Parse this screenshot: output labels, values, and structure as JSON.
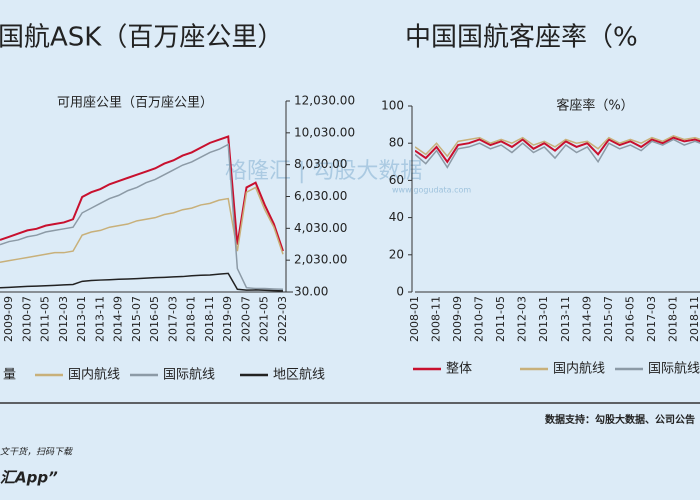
{
  "header": {
    "left_title": "国航ASK（百万座公里）",
    "right_title": "中国国航客座率（%"
  },
  "watermark": {
    "brand": "格隆汇 | 勾股大数据",
    "url": "www.gogudata.com"
  },
  "footer": {
    "source": "数据支持：勾股大数据、公司公告",
    "promo": "文干货，扫码下载",
    "app": "汇App”"
  },
  "chart_data": [
    {
      "type": "line",
      "title": "可用座公里（百万座公里）",
      "y_axis_side": "right",
      "categories": [
        null,
        "2009-09",
        null,
        "2010-07",
        null,
        "2011-05",
        null,
        "2012-03",
        null,
        "2013-01",
        null,
        "2013-11",
        null,
        "2014-09",
        null,
        "2015-07",
        null,
        "2016-05",
        null,
        "2017-03",
        null,
        "2018-01",
        null,
        "2018-11",
        null,
        "2019-09",
        null,
        "2020-07",
        null,
        "2021-05",
        null,
        "2022-03"
      ],
      "ylim": [
        30,
        12030
      ],
      "yticks": [
        {
          "value": 30,
          "label": "30.00"
        },
        {
          "value": 2030,
          "label": "2,030.00"
        },
        {
          "value": 4030,
          "label": "4,030.00"
        },
        {
          "value": 6030,
          "label": "6,030.00"
        },
        {
          "value": 8030,
          "label": "8,030.00"
        },
        {
          "value": 10030,
          "label": "10,030.00"
        },
        {
          "value": 12030,
          "label": "12,030.00"
        }
      ],
      "series": [
        {
          "name": "量",
          "color": "#c8102e",
          "values": [
            3300,
            3500,
            3700,
            3900,
            4000,
            4200,
            4300,
            4400,
            4600,
            6000,
            6300,
            6500,
            6800,
            7000,
            7200,
            7400,
            7600,
            7800,
            8100,
            8300,
            8600,
            8800,
            9100,
            9400,
            9600,
            9800,
            3000,
            6600,
            6900,
            5500,
            4300,
            2600
          ]
        },
        {
          "name": "国内航线",
          "color": "#c8b07a",
          "values": [
            1900,
            2000,
            2100,
            2200,
            2300,
            2400,
            2500,
            2500,
            2600,
            3600,
            3800,
            3900,
            4100,
            4200,
            4300,
            4500,
            4600,
            4700,
            4900,
            5000,
            5200,
            5300,
            5500,
            5600,
            5800,
            5900,
            2600,
            6300,
            6600,
            5200,
            4100,
            2400
          ]
        },
        {
          "name": "国际航线",
          "color": "#8c9aa6",
          "values": [
            3000,
            3200,
            3300,
            3500,
            3600,
            3800,
            3900,
            4000,
            4100,
            5000,
            5300,
            5600,
            5900,
            6100,
            6400,
            6600,
            6900,
            7100,
            7400,
            7700,
            8000,
            8200,
            8500,
            8800,
            9000,
            9300,
            1500,
            300,
            250,
            250,
            220,
            200
          ]
        },
        {
          "name": "地区航线",
          "color": "#222222",
          "values": [
            300,
            320,
            350,
            380,
            400,
            420,
            450,
            480,
            500,
            700,
            750,
            780,
            800,
            830,
            850,
            870,
            900,
            930,
            950,
            980,
            1000,
            1050,
            1080,
            1100,
            1150,
            1200,
            200,
            150,
            160,
            140,
            120,
            100
          ]
        }
      ]
    },
    {
      "type": "line",
      "title": "客座率（%）",
      "y_axis_side": "left",
      "categories": [
        "2008-01",
        null,
        "2008-11",
        null,
        "2009-09",
        null,
        "2010-07",
        null,
        "2011-05",
        null,
        "2012-03",
        null,
        "2013-01",
        null,
        "2013-11",
        null,
        "2014-09",
        null,
        "2015-07",
        null,
        "2016-05",
        null,
        "2017-03",
        null,
        "2018-01",
        null,
        "2018-11",
        null
      ],
      "ylim": [
        0,
        100
      ],
      "yticks": [
        0,
        20,
        40,
        60,
        80,
        100
      ],
      "series": [
        {
          "name": "整体",
          "color": "#c8102e",
          "values": [
            76,
            72,
            78,
            70,
            79,
            80,
            82,
            79,
            81,
            78,
            82,
            77,
            80,
            76,
            81,
            78,
            80,
            74,
            82,
            79,
            81,
            78,
            82,
            80,
            83,
            81,
            82,
            80
          ]
        },
        {
          "name": "国内航线",
          "color": "#c8b07a",
          "values": [
            78,
            74,
            80,
            73,
            81,
            82,
            83,
            80,
            82,
            80,
            83,
            79,
            81,
            78,
            82,
            80,
            81,
            77,
            83,
            80,
            82,
            80,
            83,
            81,
            84,
            82,
            83,
            81
          ]
        },
        {
          "name": "国际航线",
          "color": "#8c9aa6",
          "values": [
            74,
            69,
            76,
            67,
            77,
            78,
            80,
            77,
            79,
            75,
            80,
            75,
            78,
            72,
            79,
            75,
            78,
            70,
            80,
            77,
            79,
            76,
            81,
            79,
            82,
            79,
            81,
            79
          ]
        }
      ]
    }
  ]
}
